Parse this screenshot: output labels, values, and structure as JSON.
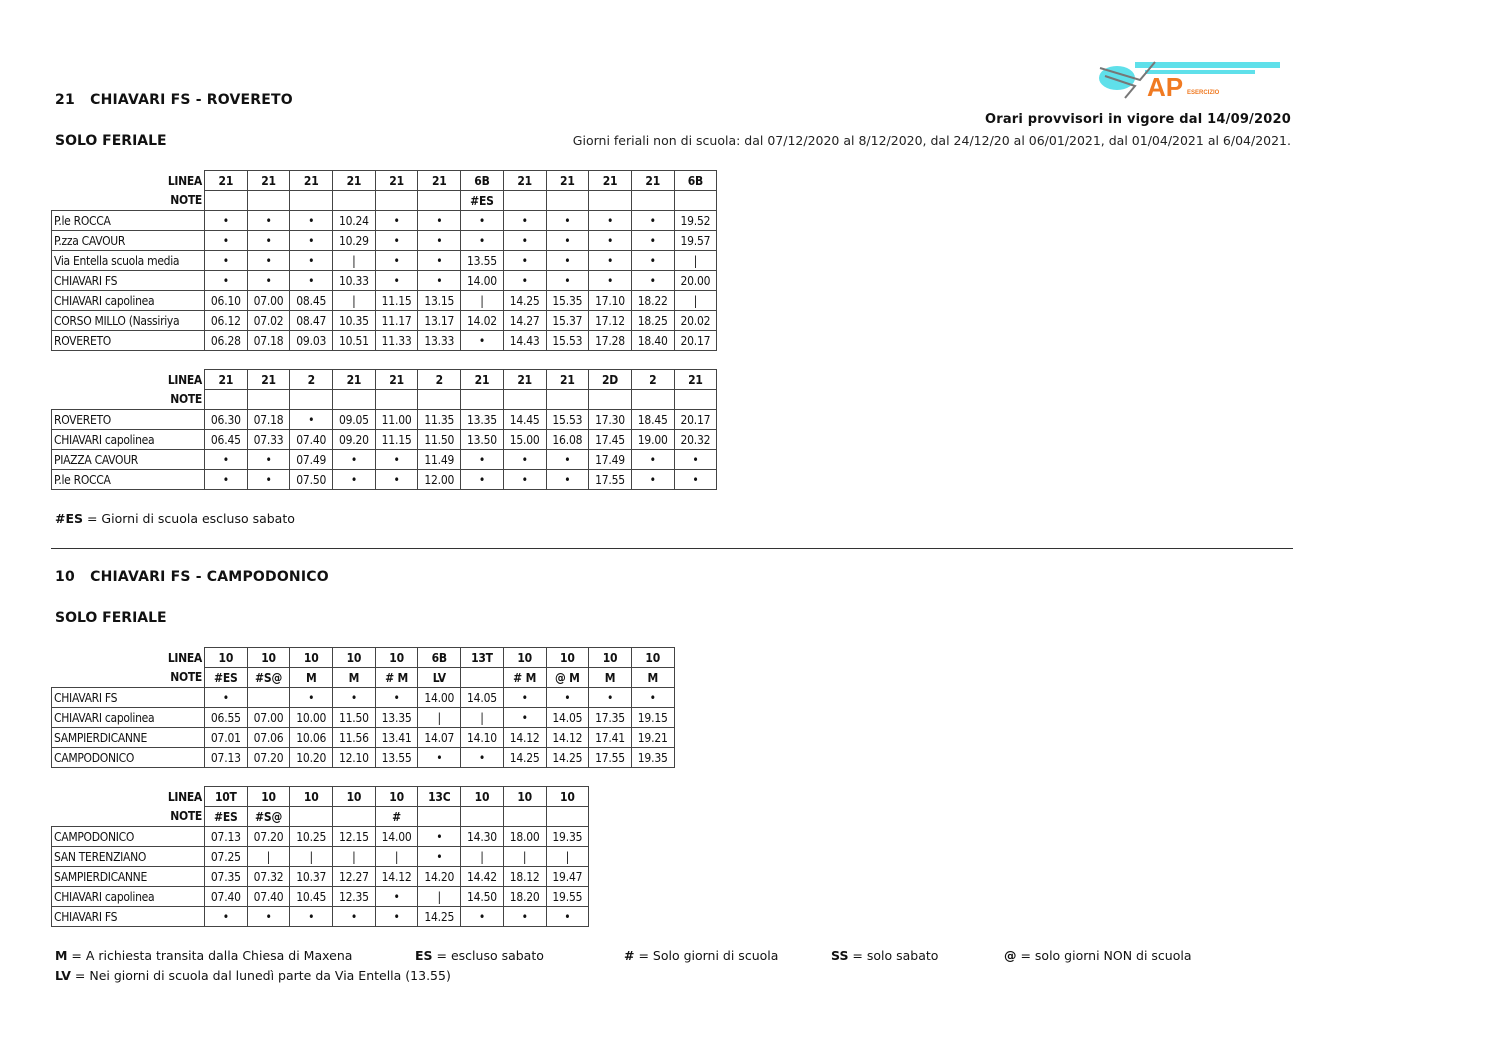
{
  "logo": {
    "text": "ATP",
    "subtext": "ESERCIZIO",
    "colors": {
      "cyan": "#5fe0ea",
      "orange": "#f07a22"
    }
  },
  "header": {
    "validity": "Orari provvisori in vigore dal 14/09/2020",
    "non_school_days": "Giorni feriali non di scuola: dal 07/12/2020 al 8/12/2020, dal 24/12/20 al 06/01/2021, dal 01/04/2021 al 6/04/2021."
  },
  "sections": [
    {
      "number": "21",
      "title": "CHIAVARI FS - ROVERETO",
      "subtitle": "SOLO FERIALE",
      "tables": [
        {
          "linea_label": "LINEA",
          "note_label": "NOTE",
          "linea": [
            "21",
            "21",
            "21",
            "21",
            "21",
            "21",
            "6B",
            "21",
            "21",
            "21",
            "21",
            "6B"
          ],
          "note": [
            "",
            "",
            "",
            "",
            "",
            "",
            "#ES",
            "",
            "",
            "",
            "",
            ""
          ],
          "rows": [
            {
              "stop": "P.le ROCCA",
              "times": [
                "•",
                "•",
                "•",
                "10.24",
                "•",
                "•",
                "•",
                "•",
                "•",
                "•",
                "•",
                "19.52"
              ]
            },
            {
              "stop": "P.zza CAVOUR",
              "times": [
                "•",
                "•",
                "•",
                "10.29",
                "•",
                "•",
                "•",
                "•",
                "•",
                "•",
                "•",
                "19.57"
              ]
            },
            {
              "stop": "Via Entella scuola media",
              "times": [
                "•",
                "•",
                "•",
                "|",
                "•",
                "•",
                "13.55",
                "•",
                "•",
                "•",
                "•",
                "|"
              ]
            },
            {
              "stop": "CHIAVARI FS",
              "times": [
                "•",
                "•",
                "•",
                "10.33",
                "•",
                "•",
                "14.00",
                "•",
                "•",
                "•",
                "•",
                "20.00"
              ]
            },
            {
              "stop": "CHIAVARI capolinea",
              "times": [
                "06.10",
                "07.00",
                "08.45",
                "|",
                "11.15",
                "13.15",
                "|",
                "14.25",
                "15.35",
                "17.10",
                "18.22",
                "|"
              ]
            },
            {
              "stop": "CORSO MILLO (Nassiriya",
              "times": [
                "06.12",
                "07.02",
                "08.47",
                "10.35",
                "11.17",
                "13.17",
                "14.02",
                "14.27",
                "15.37",
                "17.12",
                "18.25",
                "20.02"
              ]
            },
            {
              "stop": "ROVERETO",
              "times": [
                "06.28",
                "07.18",
                "09.03",
                "10.51",
                "11.33",
                "13.33",
                "•",
                "14.43",
                "15.53",
                "17.28",
                "18.40",
                "20.17"
              ]
            }
          ]
        },
        {
          "linea_label": "LINEA",
          "note_label": "NOTE",
          "linea": [
            "21",
            "21",
            "2",
            "21",
            "21",
            "2",
            "21",
            "21",
            "21",
            "2D",
            "2",
            "21"
          ],
          "note": [
            "",
            "",
            "",
            "",
            "",
            "",
            "",
            "",
            "",
            "",
            "",
            ""
          ],
          "rows": [
            {
              "stop": "ROVERETO",
              "times": [
                "06.30",
                "07.18",
                "•",
                "09.05",
                "11.00",
                "11.35",
                "13.35",
                "14.45",
                "15.53",
                "17.30",
                "18.45",
                "20.17"
              ]
            },
            {
              "stop": "CHIAVARI capolinea",
              "times": [
                "06.45",
                "07.33",
                "07.40",
                "09.20",
                "11.15",
                "11.50",
                "13.50",
                "15.00",
                "16.08",
                "17.45",
                "19.00",
                "20.32"
              ]
            },
            {
              "stop": "PIAZZA CAVOUR",
              "times": [
                "•",
                "•",
                "07.49",
                "•",
                "•",
                "11.49",
                "•",
                "•",
                "•",
                "17.49",
                "•",
                "•"
              ]
            },
            {
              "stop": "P.le ROCCA",
              "times": [
                "•",
                "•",
                "07.50",
                "•",
                "•",
                "12.00",
                "•",
                "•",
                "•",
                "17.55",
                "•",
                "•"
              ]
            }
          ]
        }
      ],
      "notes": [
        {
          "key": "#ES",
          "text": " = Giorni di scuola escluso sabato"
        }
      ]
    },
    {
      "number": "10",
      "title": "CHIAVARI FS - CAMPODONICO",
      "subtitle": "SOLO FERIALE",
      "tables": [
        {
          "linea_label": "LINEA",
          "note_label": "NOTE",
          "linea": [
            "10",
            "10",
            "10",
            "10",
            "10",
            "6B",
            "13T",
            "10",
            "10",
            "10",
            "10"
          ],
          "note": [
            "#ES",
            "#S@",
            "M",
            "M",
            "# M",
            "LV",
            "",
            "# M",
            "@ M",
            "M",
            "M"
          ],
          "rows": [
            {
              "stop": "CHIAVARI FS",
              "times": [
                "•",
                "",
                "•",
                "•",
                "•",
                "14.00",
                "14.05",
                "•",
                "•",
                "•",
                "•"
              ]
            },
            {
              "stop": "CHIAVARI capolinea",
              "times": [
                "06.55",
                "07.00",
                "10.00",
                "11.50",
                "13.35",
                "|",
                "|",
                "•",
                "14.05",
                "17.35",
                "19.15"
              ]
            },
            {
              "stop": "SAMPIERDICANNE",
              "times": [
                "07.01",
                "07.06",
                "10.06",
                "11.56",
                "13.41",
                "14.07",
                "14.10",
                "14.12",
                "14.12",
                "17.41",
                "19.21"
              ]
            },
            {
              "stop": "CAMPODONICO",
              "times": [
                "07.13",
                "07.20",
                "10.20",
                "12.10",
                "13.55",
                "•",
                "•",
                "14.25",
                "14.25",
                "17.55",
                "19.35"
              ]
            }
          ]
        },
        {
          "linea_label": "LINEA",
          "note_label": "NOTE",
          "linea": [
            "10T",
            "10",
            "10",
            "10",
            "10",
            "13C",
            "10",
            "10",
            "10"
          ],
          "note": [
            "#ES",
            "#S@",
            "",
            "",
            "#",
            "",
            "",
            "",
            ""
          ],
          "rows": [
            {
              "stop": "CAMPODONICO",
              "times": [
                "07.13",
                "07.20",
                "10.25",
                "12.15",
                "14.00",
                "•",
                "14.30",
                "18.00",
                "19.35"
              ]
            },
            {
              "stop": "SAN TERENZIANO",
              "times": [
                "07.25",
                "|",
                "|",
                "|",
                "|",
                "•",
                "|",
                "|",
                "|"
              ]
            },
            {
              "stop": "SAMPIERDICANNE",
              "times": [
                "07.35",
                "07.32",
                "10.37",
                "12.27",
                "14.12",
                "14.20",
                "14.42",
                "18.12",
                "19.47"
              ]
            },
            {
              "stop": "CHIAVARI capolinea",
              "times": [
                "07.40",
                "07.40",
                "10.45",
                "12.35",
                "•",
                "|",
                "14.50",
                "18.20",
                "19.55"
              ]
            },
            {
              "stop": "CHIAVARI FS",
              "times": [
                "•",
                "•",
                "•",
                "•",
                "•",
                "14.25",
                "•",
                "•",
                "•"
              ]
            }
          ]
        }
      ],
      "notes": [
        {
          "key": "M",
          "text": " = A richiesta transita dalla Chiesa di Maxena"
        },
        {
          "key": "ES",
          "text": " = escluso sabato"
        },
        {
          "key": "#",
          "text": " = Solo giorni di scuola"
        },
        {
          "key": "SS",
          "text": " = solo sabato"
        },
        {
          "key": "@",
          "text": " = solo giorni NON di scuola"
        },
        {
          "key": "LV",
          "text": " = Nei giorni di scuola dal lunedì parte da Via Entella (13.55)"
        }
      ]
    }
  ]
}
